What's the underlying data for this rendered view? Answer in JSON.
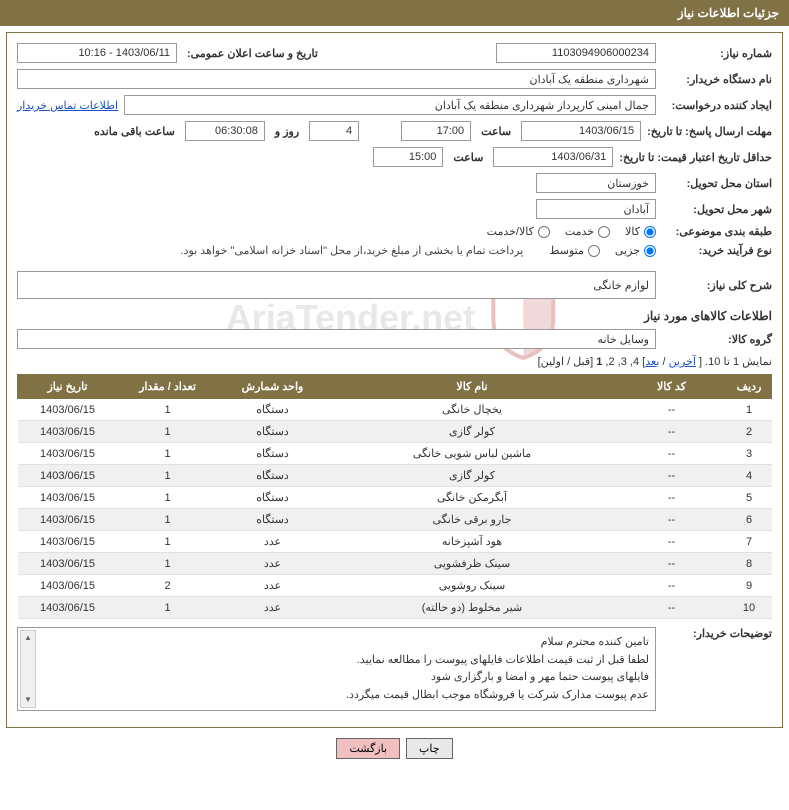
{
  "header": {
    "title": "جزئیات اطلاعات نیاز"
  },
  "form": {
    "need_number_label": "شماره نیاز:",
    "need_number": "1103094906000234",
    "announce_label": "تاریخ و ساعت اعلان عمومی:",
    "announce_value": "1403/06/11 - 10:16",
    "buyer_org_label": "نام دستگاه خریدار:",
    "buyer_org": "شهرداری منطقه یک آبادان",
    "requester_label": "ایجاد کننده درخواست:",
    "requester": "جمال امینی کارپرداز شهرداری منطقه یک آبادان",
    "contact_link": "اطلاعات تماس خریدار",
    "deadline_label": "مهلت ارسال پاسخ: تا تاریخ:",
    "deadline_date": "1403/06/15",
    "time_label": "ساعت",
    "deadline_time": "17:00",
    "days": "4",
    "days_label": "روز و",
    "countdown": "06:30:08",
    "remaining_label": "ساعت باقی مانده",
    "price_validity_label": "حداقل تاریخ اعتبار قیمت: تا تاریخ:",
    "price_validity_date": "1403/06/31",
    "price_validity_time": "15:00",
    "province_label": "استان محل تحویل:",
    "province": "خوزستان",
    "city_label": "شهر محل تحویل:",
    "city": "آبادان",
    "category_label": "طبقه بندی موضوعی:",
    "cat_opts": {
      "goods": "کالا",
      "service": "خدمت",
      "goods_service": "کالا/خدمت"
    },
    "purchase_type_label": "نوع فرآیند خرید:",
    "purchase_opts": {
      "partial": "جزیی",
      "medium": "متوسط"
    },
    "purchase_note": "پرداخت تمام یا بخشی از مبلغ خرید،از محل \"اسناد خزانه اسلامی\" خواهد بود.",
    "desc_label": "شرح کلی نیاز:",
    "desc_value": "لوازم خانگی",
    "goods_section": "اطلاعات کالاهای مورد نیاز",
    "group_label": "گروه کالا:",
    "group_value": "وسایل خانه",
    "buyer_notes_label": "توضیحات خریدار:",
    "buyer_notes": {
      "l1": "تامین کننده محترم سلام",
      "l2": "لطفا قبل از ثبت قیمت اطلاعات فایلهای پیوست را مطالعه نمایید.",
      "l3": "فایلهای پیوست حتما مهر و امضا و بارگزاری شود",
      "l4": "عدم پیوست مدارک شرکت یا فروشگاه موجب ابطال قیمت میگردد."
    }
  },
  "pagination": {
    "prefix": "نمایش 1 تا 10. [ ",
    "last": "آخرین",
    "sep": " / ",
    "next": "بعد",
    "nums": "] 4, 3, 2, ",
    "cur": "1",
    "suffix": " [قبل / اولین]"
  },
  "table": {
    "cols": {
      "row": "ردیف",
      "code": "کد کالا",
      "name": "نام کالا",
      "unit": "واحد شمارش",
      "qty": "تعداد / مقدار",
      "date": "تاریخ نیاز"
    },
    "rows": [
      {
        "r": "1",
        "code": "--",
        "name": "یخچال خانگی",
        "unit": "دستگاه",
        "qty": "1",
        "date": "1403/06/15"
      },
      {
        "r": "2",
        "code": "--",
        "name": "کولر گازی",
        "unit": "دستگاه",
        "qty": "1",
        "date": "1403/06/15"
      },
      {
        "r": "3",
        "code": "--",
        "name": "ماشین لباس شویی خانگی",
        "unit": "دستگاه",
        "qty": "1",
        "date": "1403/06/15"
      },
      {
        "r": "4",
        "code": "--",
        "name": "کولر گازی",
        "unit": "دستگاه",
        "qty": "1",
        "date": "1403/06/15"
      },
      {
        "r": "5",
        "code": "--",
        "name": "آبگرمکن خانگی",
        "unit": "دستگاه",
        "qty": "1",
        "date": "1403/06/15"
      },
      {
        "r": "6",
        "code": "--",
        "name": "جارو برقی خانگی",
        "unit": "دستگاه",
        "qty": "1",
        "date": "1403/06/15"
      },
      {
        "r": "7",
        "code": "--",
        "name": "هود آشپزخانه",
        "unit": "عدد",
        "qty": "1",
        "date": "1403/06/15"
      },
      {
        "r": "8",
        "code": "--",
        "name": "سینک ظرفشویی",
        "unit": "عدد",
        "qty": "1",
        "date": "1403/06/15"
      },
      {
        "r": "9",
        "code": "--",
        "name": "سینک روشویی",
        "unit": "عدد",
        "qty": "2",
        "date": "1403/06/15"
      },
      {
        "r": "10",
        "code": "--",
        "name": "شیر مخلوط (دو حالته)",
        "unit": "عدد",
        "qty": "1",
        "date": "1403/06/15"
      }
    ]
  },
  "buttons": {
    "print": "چاپ",
    "back": "بازگشت"
  },
  "colors": {
    "header_bg": "#817245",
    "header_fg": "#ffffff",
    "border": "#817245",
    "link": "#1a4fc7",
    "row_alt": "#f0f0f0",
    "btn_back_bg": "#f0c0c0",
    "watermark": "#e8e8e8"
  },
  "table_col_widths": {
    "row": "45px",
    "code": "110px",
    "name": "auto",
    "unit": "110px",
    "qty": "100px",
    "date": "100px"
  }
}
